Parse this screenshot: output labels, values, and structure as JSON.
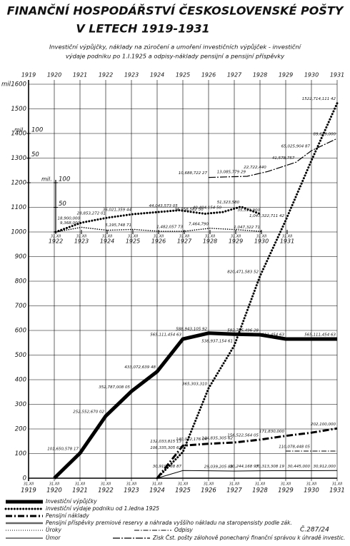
{
  "title": [
    "FINANČNÍ HOSPODÁŘSTVÍ ČESKOSLOVENSKÉ POŠTY",
    "V LETECH 1919-1931"
  ],
  "subtitle": [
    "Investiční výpůjčky, náklady na zúročení a umoření investičních výpůjček - investiční",
    "výdaje podniku po 1.I.1925 a odpisy-náklady pensijní a pensijní příspěvky"
  ],
  "document_number": "Č.287/24",
  "chart_data": [
    {
      "type": "line",
      "ylabel": "mil.",
      "x_tick_prefix": "31.XII",
      "xlim": [
        1919,
        1931
      ],
      "xticks": [
        1919,
        1920,
        1921,
        1922,
        1923,
        1924,
        1925,
        1926,
        1927,
        1928,
        1929,
        1930,
        1931
      ],
      "ylim": [
        0,
        1600
      ],
      "yticks": [
        0,
        100,
        200,
        300,
        400,
        500,
        600,
        700,
        800,
        900,
        1000,
        1100,
        1200,
        1300,
        1400,
        1500,
        1600
      ],
      "grid": true,
      "series": [
        {
          "name": "Investiční výpůjčky",
          "style": "solid-thick",
          "x": [
            1920,
            1921,
            1922,
            1923,
            1924,
            1925,
            1926,
            1927,
            1928,
            1929,
            1930,
            1931
          ],
          "values": [
            0,
            101.65057817,
            252.55267002,
            352.78700805,
            433.07263948,
            565.11145463,
            588.94310592,
            585,
            582.70549628,
            565.11145463,
            565.11145463,
            565.11145463
          ],
          "value_labels": [
            null,
            "101,650,578 17",
            "252,552,670 02",
            "352,787,008 05",
            "433,072,639 48",
            "565,111,454 63",
            "588,943,105 92",
            null,
            "582,705,496 28",
            "565,111,454 63",
            null,
            "565,111,454 63"
          ]
        },
        {
          "name": "investiční výdaje podniku od 1.ledna 1925",
          "style": "dotted",
          "x": [
            1924,
            1925,
            1926,
            1927,
            1928,
            1929,
            1930,
            1931
          ],
          "values": [
            0,
            106.33530562,
            365.30331,
            538.93715461,
            820.47158352,
            1047.32271142,
            1290,
            1522.71411142
          ],
          "value_labels": [
            null,
            "106,335,305 62",
            "365,303,310",
            "538,937,154 61",
            "820,471,583 52",
            "1,047,322,711 42",
            null,
            "1522,714,111 42"
          ]
        },
        {
          "name": "Pensijní náklady",
          "style": "dashdot-thick",
          "x": [
            1924,
            1925,
            1926,
            1927,
            1928,
            1929,
            1930,
            1931
          ],
          "values": [
            0,
            132.03381513,
            140.03217604,
            144.83530562,
            156.52256405,
            171.83,
            185,
            202.1
          ],
          "value_labels": [
            null,
            "132,033,815 13",
            "140,032,176 04",
            "144,835,305 62",
            "156,522,564 05",
            "171,830,000",
            null,
            "202,100,000"
          ]
        },
        {
          "name": "Úmor",
          "style": "thin",
          "x": [
            1924,
            1925,
            1926,
            1927,
            1928,
            1929,
            1930,
            1931
          ],
          "values": [
            0,
            30.91078887,
            30,
            29.03920588,
            30.24416897,
            30.31330819,
            30.445,
            30.912
          ],
          "value_labels": [
            null,
            "30,910,788 87",
            null,
            "29,039,205 88",
            "30,244,168 97",
            "30,313,308 19",
            "30,445,000",
            "30,912,000"
          ]
        },
        {
          "name": "Odpisy",
          "style": "dashdot-thin",
          "x": [
            1929,
            1930,
            1931
          ],
          "values": [
            110.07844805,
            110.07844805,
            110.07844805
          ],
          "value_labels": [
            null,
            "110,078,448 05",
            null
          ]
        }
      ],
      "legend": [
        {
          "label": "Investiční výpůjčky",
          "style": "solid-thick"
        },
        {
          "label": "investiční výdaje podniku od 1.ledna 1925",
          "style": "dotted"
        },
        {
          "label": "Pensijní náklady",
          "style": "dashdot-thick"
        },
        {
          "label": "Pensijní příspěvky premiové reservy a náhrada vyššího nákladu na staropensisty podle zák.",
          "style": "double"
        },
        {
          "label": "Úroky",
          "style": "plus"
        },
        {
          "label": "Odpisy",
          "style": "dashdot-thin"
        },
        {
          "label": "Úmor",
          "style": "thin"
        },
        {
          "label": "Zisk Čst. pošty zálohově ponechaný finanční správou k úhradě investic.",
          "style": "dashdot-long"
        }
      ]
    },
    {
      "type": "line",
      "ylabel": "mil.",
      "x_tick_prefix": "31.XII",
      "xlim": [
        1922,
        1931
      ],
      "xticks": [
        1922,
        1923,
        1924,
        1925,
        1926,
        1927,
        1928,
        1929,
        1930,
        1931
      ],
      "ylim": [
        0,
        100
      ],
      "yticks": [
        0,
        50,
        100
      ],
      "series": [
        {
          "style": "dotted",
          "x": [
            1922,
            1923,
            1924,
            1925,
            1926.8,
            1927.8,
            1928.5,
            1929.2,
            1930
          ],
          "values": [
            0,
            18.9,
            28.85327201,
            36.02135944,
            44.04357305,
            36.9585825,
            40.4041545,
            51.32358,
            35.5119
          ],
          "value_labels": [
            null,
            "18,900,000",
            "28,853,272 01",
            "36,021,359 44",
            "44,043,573 05",
            "36,958,582 50",
            "40,404,154 50",
            "51,323,580",
            "35,511,900"
          ]
        },
        {
          "style": "dotted-small",
          "x": [
            1922,
            1923,
            1924,
            1925,
            1926,
            1927,
            1928,
            1929,
            1930
          ],
          "values": [
            0,
            9.368,
            3.5,
            5.19574871,
            1.5,
            1.48205773,
            7.46479,
            4.8,
            1.04732271
          ],
          "value_labels": [
            null,
            "9,368,000",
            null,
            "5,195,748 71",
            null,
            "1,482,057 73",
            "7,464,790",
            null,
            "1,047,322 71"
          ]
        }
      ]
    },
    {
      "type": "line",
      "ylabel": "mil.",
      "xlim": [
        1919,
        1931
      ],
      "ylim": [
        0,
        100
      ],
      "yticks": [
        0,
        50,
        100
      ],
      "series": [
        {
          "style": "dashdot-long",
          "x": [
            1926,
            1927.5,
            1928.3,
            1929.4,
            1930,
            1931
          ],
          "values": [
            10.68872227,
            13.08577929,
            22.72244,
            41.578757,
            65.02590487,
            89.659
          ],
          "value_labels": [
            "10,688,722 27",
            "13,085,779 29",
            "22,722,440",
            "41,578,757",
            "65,025,904 87",
            "89,659,000"
          ]
        }
      ]
    }
  ]
}
